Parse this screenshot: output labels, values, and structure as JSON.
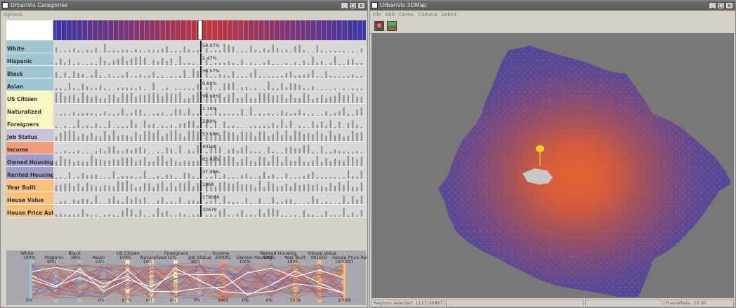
{
  "left_window": {
    "title": "UrbanVis Categories",
    "menu": [
      "Options"
    ],
    "window_buttons": [
      "_",
      "□",
      "x"
    ],
    "rows": [
      {
        "label": "White",
        "value": "58.07%",
        "color": "#9ec7d2"
      },
      {
        "label": "Hispanic",
        "value": "2.47%",
        "color": "#9ec7d2"
      },
      {
        "label": "Black",
        "value": "38.57%",
        "color": "#9ec7d2"
      },
      {
        "label": "Asian",
        "value": "0.60%",
        "color": "#9ec7d2"
      },
      {
        "label": "US Citizen",
        "value": "96.98%",
        "color": "#fbf5c0"
      },
      {
        "label": "Naturalized",
        "value": "1.18%",
        "color": "#fbf5c0"
      },
      {
        "label": "Foreigners",
        "value": "2.80%",
        "color": "#fbf5c0"
      },
      {
        "label": "Job Status",
        "value": "53.66%",
        "color": "#c6c2da"
      },
      {
        "label": "Income",
        "value": "40198",
        "color": "#f19b78"
      },
      {
        "label": "Owned Housing",
        "value": "62.00%",
        "color": "#9f9fcc"
      },
      {
        "label": "Rented Housing",
        "value": "37.98%",
        "color": "#9f9fcc"
      },
      {
        "label": "Year Built",
        "value": "1968",
        "color": "#fbc07c"
      },
      {
        "label": "House Value",
        "value": "178006",
        "color": "#fbc07c"
      },
      {
        "label": "House Price Asked",
        "value": "32679",
        "color": "#fbc07c"
      }
    ],
    "pcp_axes": [
      {
        "name": "White",
        "max": "100%",
        "min": "0%"
      },
      {
        "name": "Hispanic",
        "max": "60%",
        "min": ""
      },
      {
        "name": "Black",
        "max": "98%",
        "min": ""
      },
      {
        "name": "Asian",
        "max": "21%",
        "min": "0%"
      },
      {
        "name": "US Citizen",
        "max": "100%",
        "min": "85%"
      },
      {
        "name": "Naturalized",
        "max": "10%",
        "min": "0%"
      },
      {
        "name": "Foreigners",
        "max": "11%",
        "min": "0%"
      },
      {
        "name": "Job Status",
        "max": "85%",
        "min": "0%"
      },
      {
        "name": "Income",
        "max": "200001",
        "min": "9462"
      },
      {
        "name": "Owned Housing",
        "max": "100%",
        "min": "0%"
      },
      {
        "name": "Rented Housing",
        "max": "100%",
        "min": "0%"
      },
      {
        "name": "Year Built",
        "max": "1999",
        "min": "1939"
      },
      {
        "name": "House Value",
        "max": "991600",
        "min": ""
      },
      {
        "name": "House Price Asked",
        "max": "1000001",
        "min": "10000"
      }
    ]
  },
  "right_window": {
    "title": "UrbanVis 3DMap",
    "menu": [
      "File",
      "Edit",
      "Demo",
      "Camera",
      "Select"
    ],
    "window_buttons": [
      "_",
      "□",
      "x"
    ],
    "toolbar_icons": [
      "flower-icon",
      "landscape-icon"
    ],
    "status_selected": "Regions selected: 1117/39867",
    "status_framerate": "FrameRate: 20.00"
  },
  "colors": {
    "map_purple": "#5a4c9a",
    "map_orange": "#e0683a",
    "pin": "#f3d120"
  }
}
